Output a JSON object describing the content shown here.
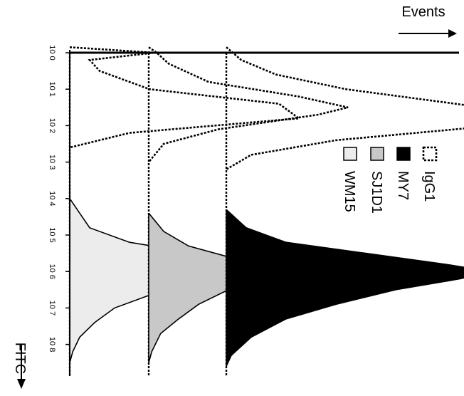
{
  "chart_data": {
    "type": "area",
    "orientation": "rotated-vertical",
    "x_axis": {
      "label": "FITC",
      "scale": "log",
      "range": [
        1,
        100000000
      ],
      "ticks": [
        {
          "label": "10 0",
          "value": 1
        },
        {
          "label": "10 1",
          "value": 10
        },
        {
          "label": "10 2",
          "value": 100
        },
        {
          "label": "10 3",
          "value": 1000
        },
        {
          "label": "10 4",
          "value": 10000
        },
        {
          "label": "10 5",
          "value": 100000
        },
        {
          "label": "10 6",
          "value": 1000000
        },
        {
          "label": "10 7",
          "value": 10000000
        },
        {
          "label": "10 8",
          "value": 100000000
        }
      ]
    },
    "y_axis": {
      "label": "Events"
    },
    "legend": {
      "placement": "top-right",
      "items": [
        {
          "label": "IgG1",
          "style": "dotted"
        },
        {
          "label": "MY7",
          "fill": "#000000"
        },
        {
          "label": "SJ1D1",
          "fill": "#c8c8c8"
        },
        {
          "label": "WM15",
          "fill": "#ececec"
        }
      ]
    },
    "panels": [
      {
        "baseline_label": "WM15",
        "isotype_logx": [
          -0.15,
          0.0,
          0.2,
          0.5,
          1.0,
          1.4,
          1.8,
          2.2,
          2.6
        ],
        "isotype_counts": [
          0,
          85,
          20,
          30,
          80,
          210,
          230,
          60,
          0
        ],
        "stain_logx": [
          4.0,
          4.4,
          4.8,
          5.2,
          5.6,
          5.9,
          6.2,
          6.6,
          7.0,
          7.4,
          7.8,
          8.2,
          8.5
        ],
        "stain_counts": [
          0,
          10,
          20,
          60,
          150,
          175,
          140,
          85,
          45,
          25,
          10,
          3,
          0
        ],
        "fill": "#ececec"
      },
      {
        "baseline_label": "SJ1D1",
        "isotype_logx": [
          -0.15,
          0.0,
          0.3,
          0.8,
          1.2,
          1.5,
          1.7,
          2.1,
          2.5,
          3.0
        ],
        "isotype_counts": [
          0,
          8,
          20,
          60,
          150,
          200,
          170,
          70,
          15,
          0
        ],
        "stain_logx": [
          4.4,
          4.9,
          5.3,
          5.6,
          5.8,
          6.0,
          6.2,
          6.5,
          6.9,
          7.3,
          7.7,
          8.2,
          8.5
        ],
        "stain_counts": [
          0,
          15,
          40,
          80,
          120,
          130,
          115,
          80,
          50,
          30,
          12,
          3,
          0
        ],
        "fill": "#c8c8c8"
      },
      {
        "baseline_label": "MY7",
        "isotype_logx": [
          -0.15,
          0.2,
          0.6,
          1.0,
          1.4,
          1.7,
          2.0,
          2.4,
          2.8,
          3.2
        ],
        "isotype_counts": [
          0,
          15,
          50,
          120,
          230,
          310,
          270,
          110,
          25,
          0
        ],
        "stain_logx": [
          4.3,
          4.8,
          5.2,
          5.5,
          5.8,
          6.0,
          6.2,
          6.5,
          6.9,
          7.3,
          7.8,
          8.3,
          8.6
        ],
        "stain_counts": [
          0,
          20,
          60,
          140,
          220,
          265,
          235,
          170,
          110,
          60,
          25,
          5,
          0
        ],
        "fill": "#000000"
      }
    ]
  }
}
